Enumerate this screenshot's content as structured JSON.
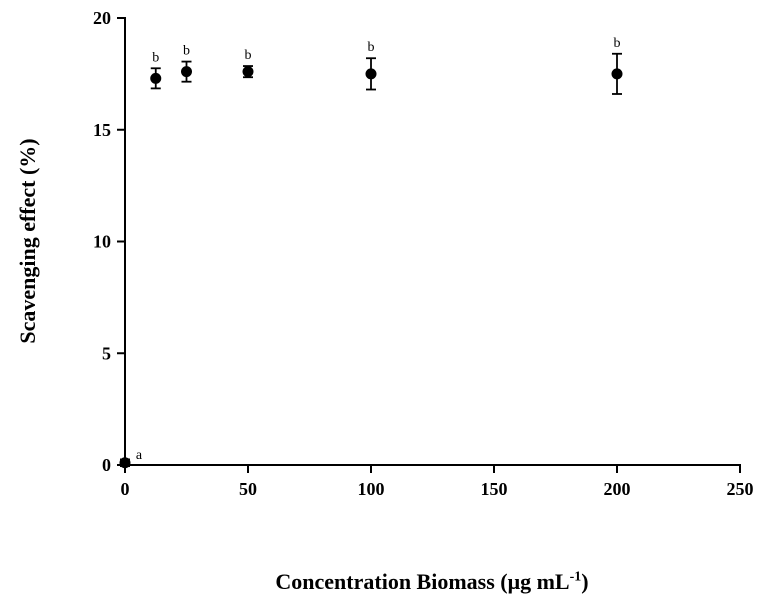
{
  "chart_data": {
    "type": "scatter",
    "title": "",
    "xlabel": {
      "prefix": "Concentration Biomass (μg mL",
      "superscript": "-1",
      "suffix": ")"
    },
    "ylabel": "Scavenging effect (%)",
    "xlim": [
      0,
      250
    ],
    "ylim": [
      0,
      20
    ],
    "xticks": [
      0,
      50,
      100,
      150,
      200,
      250
    ],
    "yticks": [
      0,
      5,
      10,
      15,
      20
    ],
    "grid": false,
    "legend": "none",
    "background": "#ffffff",
    "axis_color": "#000000",
    "series": [
      {
        "name": "Scavenging effect",
        "marker": "circle-filled",
        "color": "#000000",
        "points": [
          {
            "x": 0,
            "y": 0.1,
            "error": 0.15,
            "label": "a"
          },
          {
            "x": 12.5,
            "y": 17.3,
            "error": 0.45,
            "label": "b"
          },
          {
            "x": 25,
            "y": 17.6,
            "error": 0.45,
            "label": "b"
          },
          {
            "x": 50,
            "y": 17.6,
            "error": 0.25,
            "label": "b"
          },
          {
            "x": 100,
            "y": 17.5,
            "error": 0.7,
            "label": "b"
          },
          {
            "x": 200,
            "y": 17.5,
            "error": 0.9,
            "label": "b"
          }
        ]
      }
    ]
  }
}
